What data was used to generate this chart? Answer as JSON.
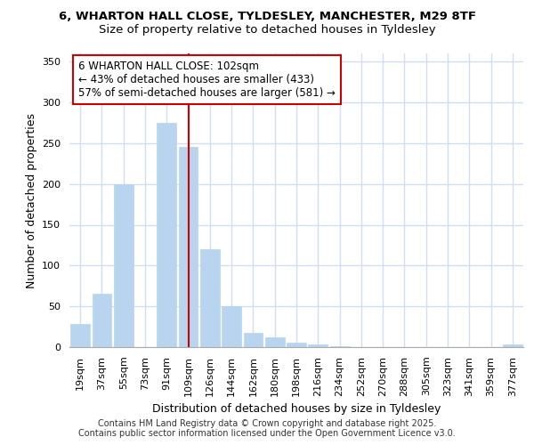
{
  "title_line1": "6, WHARTON HALL CLOSE, TYLDESLEY, MANCHESTER, M29 8TF",
  "title_line2": "Size of property relative to detached houses in Tyldesley",
  "xlabel": "Distribution of detached houses by size in Tyldesley",
  "ylabel": "Number of detached properties",
  "bar_color": "#b8d4ee",
  "bar_edge_color": "#b8d4ee",
  "background_color": "#ffffff",
  "grid_color": "#d0dff0",
  "annotation_box_color": "#cc0000",
  "vline_color": "#cc0000",
  "categories": [
    "19sqm",
    "37sqm",
    "55sqm",
    "73sqm",
    "91sqm",
    "109sqm",
    "126sqm",
    "144sqm",
    "162sqm",
    "180sqm",
    "198sqm",
    "216sqm",
    "234sqm",
    "252sqm",
    "270sqm",
    "288sqm",
    "305sqm",
    "323sqm",
    "341sqm",
    "359sqm",
    "377sqm"
  ],
  "values": [
    28,
    65,
    200,
    0,
    275,
    245,
    120,
    50,
    18,
    12,
    5,
    3,
    1,
    0,
    0,
    0,
    0,
    0,
    0,
    0,
    3
  ],
  "ylim": [
    0,
    360
  ],
  "yticks": [
    0,
    50,
    100,
    150,
    200,
    250,
    300,
    350
  ],
  "annotation_text": "6 WHARTON HALL CLOSE: 102sqm\n← 43% of detached houses are smaller (433)\n57% of semi-detached houses are larger (581) →",
  "vline_position": 5,
  "footer_line1": "Contains HM Land Registry data © Crown copyright and database right 2025.",
  "footer_line2": "Contains public sector information licensed under the Open Government Licence v3.0.",
  "title_fontsize": 9.5,
  "subtitle_fontsize": 9.5,
  "axis_label_fontsize": 9,
  "tick_fontsize": 8,
  "annotation_fontsize": 8.5,
  "footer_fontsize": 7
}
